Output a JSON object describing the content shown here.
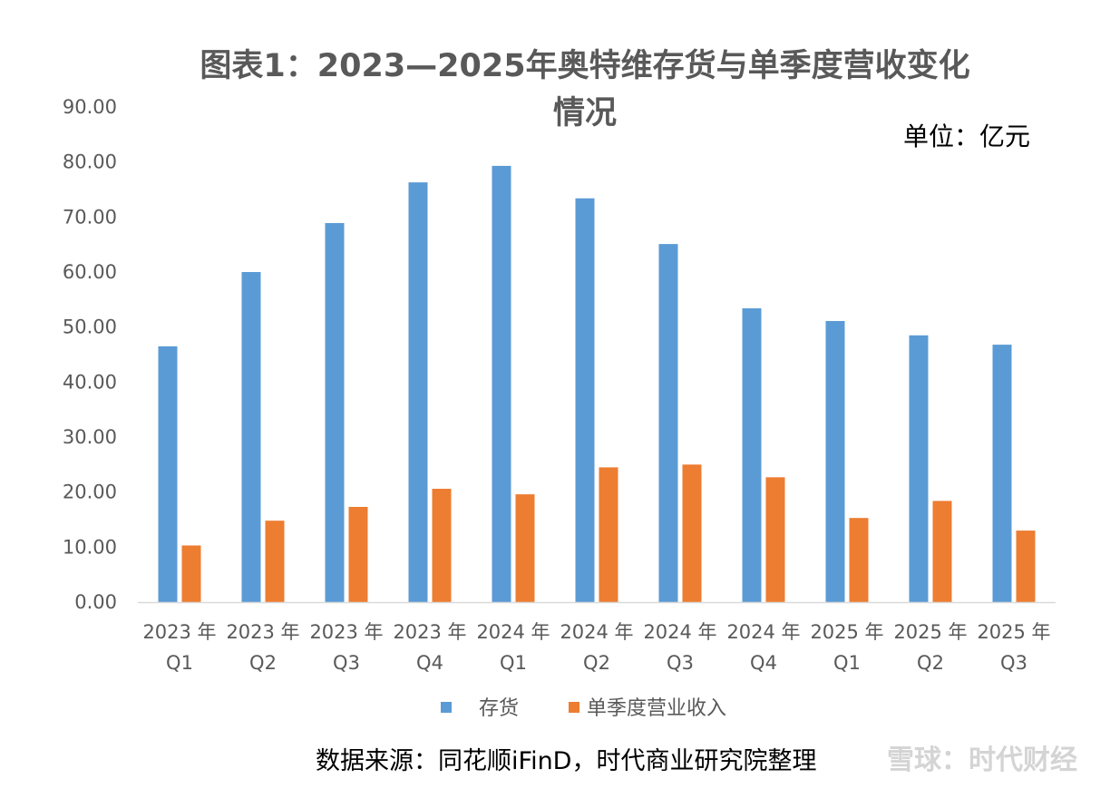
{
  "chart_data": {
    "type": "bar",
    "title_line1": "图表1：2023—2025年奥特维存货与单季度营收变化",
    "title_line2": "情况",
    "unit": "单位：亿元",
    "categories": [
      [
        "2023 年",
        "Q1"
      ],
      [
        "2023 年",
        "Q2"
      ],
      [
        "2023 年",
        "Q3"
      ],
      [
        "2023 年",
        "Q4"
      ],
      [
        "2024 年",
        "Q1"
      ],
      [
        "2024 年",
        "Q2"
      ],
      [
        "2024 年",
        "Q3"
      ],
      [
        "2024 年",
        "Q4"
      ],
      [
        "2025 年",
        "Q1"
      ],
      [
        "2025 年",
        "Q2"
      ],
      [
        "2025 年",
        "Q3"
      ]
    ],
    "series": [
      {
        "name": "存货",
        "color": "#5b9bd5",
        "values": [
          46.5,
          60.0,
          68.9,
          76.3,
          79.3,
          73.4,
          65.1,
          53.4,
          51.1,
          48.5,
          46.8
        ]
      },
      {
        "name": "单季度营业收入",
        "color": "#ed7d31",
        "values": [
          10.3,
          14.8,
          17.3,
          20.6,
          19.6,
          24.5,
          25.0,
          22.7,
          15.3,
          18.4,
          13.0
        ]
      }
    ],
    "ylim": [
      0,
      90
    ],
    "yticks": [
      "0.00",
      "10.00",
      "20.00",
      "30.00",
      "40.00",
      "50.00",
      "60.00",
      "70.00",
      "80.00",
      "90.00"
    ],
    "grid": false,
    "legend_position": "bottom",
    "source": "数据来源：同花顺iFinD，时代商业研究院整理",
    "watermark": "雪球：时代财经"
  }
}
